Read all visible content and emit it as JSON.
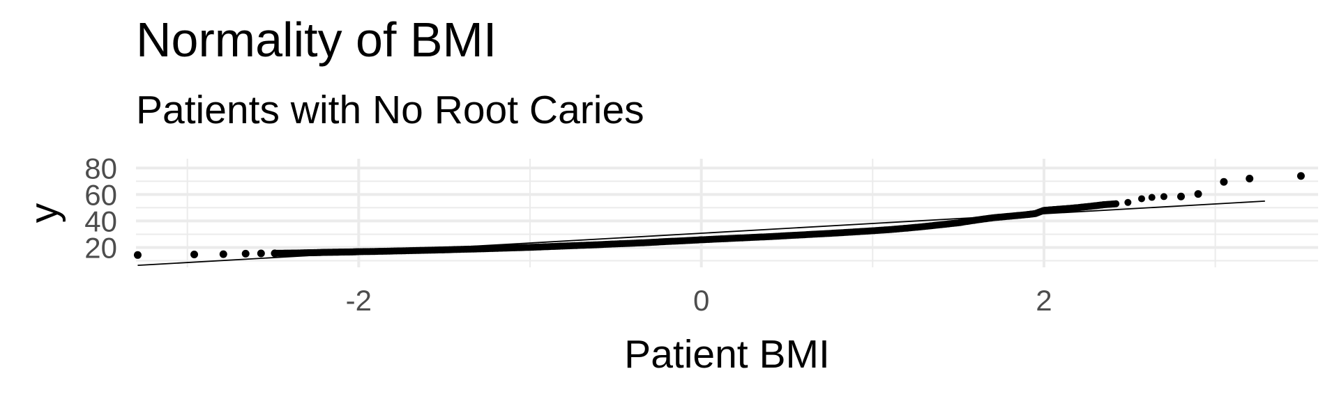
{
  "chart_data": {
    "type": "scatter",
    "title": "Normality of BMI",
    "subtitle": "Patients with No Root Caries",
    "xlabel": "Patient BMI",
    "ylabel": "y",
    "xlim": [
      -3.3,
      3.6
    ],
    "ylim": [
      5,
      87
    ],
    "x_ticks": [
      -2,
      0,
      2
    ],
    "x_tick_labels": [
      "-2",
      "0",
      "2"
    ],
    "y_ticks": [
      20,
      40,
      60,
      80
    ],
    "y_tick_labels": [
      "20",
      "40",
      "60",
      "80"
    ],
    "grid": true,
    "reference_line": {
      "x": [
        -3.29,
        3.29
      ],
      "y": [
        6.5,
        55
      ]
    },
    "series": [
      {
        "points": [
          [
            -3.29,
            14.3
          ],
          [
            -2.96,
            14.7
          ],
          [
            -2.79,
            14.9
          ],
          [
            -2.66,
            15.3
          ],
          [
            -2.57,
            15.5
          ],
          [
            -2.49,
            15.6
          ],
          [
            -2.42,
            15.7
          ],
          [
            -2.36,
            15.8
          ],
          [
            -2.3,
            16.0
          ],
          [
            -2.25,
            16.1
          ],
          [
            -2.2,
            16.3
          ],
          [
            -2.15,
            16.4
          ],
          [
            -2.1,
            16.5
          ],
          [
            -2.05,
            16.6
          ],
          [
            -2.0,
            16.8
          ],
          [
            -1.9,
            17.0
          ],
          [
            -1.8,
            17.3
          ],
          [
            -1.7,
            17.6
          ],
          [
            -1.6,
            17.9
          ],
          [
            -1.5,
            18.2
          ],
          [
            -1.4,
            18.6
          ],
          [
            -1.3,
            18.9
          ],
          [
            -1.2,
            19.3
          ],
          [
            -1.1,
            19.7
          ],
          [
            -1.0,
            20.1
          ],
          [
            -0.9,
            20.6
          ],
          [
            -0.8,
            21.1
          ],
          [
            -0.7,
            21.6
          ],
          [
            -0.6,
            22.1
          ],
          [
            -0.5,
            22.7
          ],
          [
            -0.4,
            23.2
          ],
          [
            -0.3,
            23.8
          ],
          [
            -0.2,
            24.5
          ],
          [
            -0.1,
            25.1
          ],
          [
            0.0,
            25.8
          ],
          [
            0.1,
            26.4
          ],
          [
            0.2,
            27.0
          ],
          [
            0.3,
            27.6
          ],
          [
            0.4,
            28.2
          ],
          [
            0.5,
            28.9
          ],
          [
            0.6,
            29.6
          ],
          [
            0.7,
            30.3
          ],
          [
            0.8,
            31.0
          ],
          [
            0.9,
            31.8
          ],
          [
            1.0,
            32.6
          ],
          [
            1.1,
            33.5
          ],
          [
            1.2,
            34.6
          ],
          [
            1.3,
            35.8
          ],
          [
            1.4,
            37.2
          ],
          [
            1.5,
            38.6
          ],
          [
            1.6,
            40.6
          ],
          [
            1.7,
            42.4
          ],
          [
            1.8,
            43.6
          ],
          [
            1.9,
            44.8
          ],
          [
            1.95,
            45.6
          ],
          [
            2.0,
            48.0
          ],
          [
            2.05,
            48.5
          ],
          [
            2.1,
            49.0
          ],
          [
            2.15,
            49.5
          ],
          [
            2.2,
            50.1
          ],
          [
            2.25,
            50.8
          ],
          [
            2.3,
            51.5
          ],
          [
            2.35,
            52.3
          ],
          [
            2.42,
            53.0
          ],
          [
            2.49,
            54.0
          ],
          [
            2.57,
            56.8
          ],
          [
            2.63,
            57.8
          ],
          [
            2.7,
            58.4
          ],
          [
            2.8,
            58.5
          ],
          [
            2.9,
            60.4
          ],
          [
            3.05,
            69.5
          ],
          [
            3.2,
            72.0
          ],
          [
            3.5,
            74.0
          ]
        ]
      }
    ]
  }
}
